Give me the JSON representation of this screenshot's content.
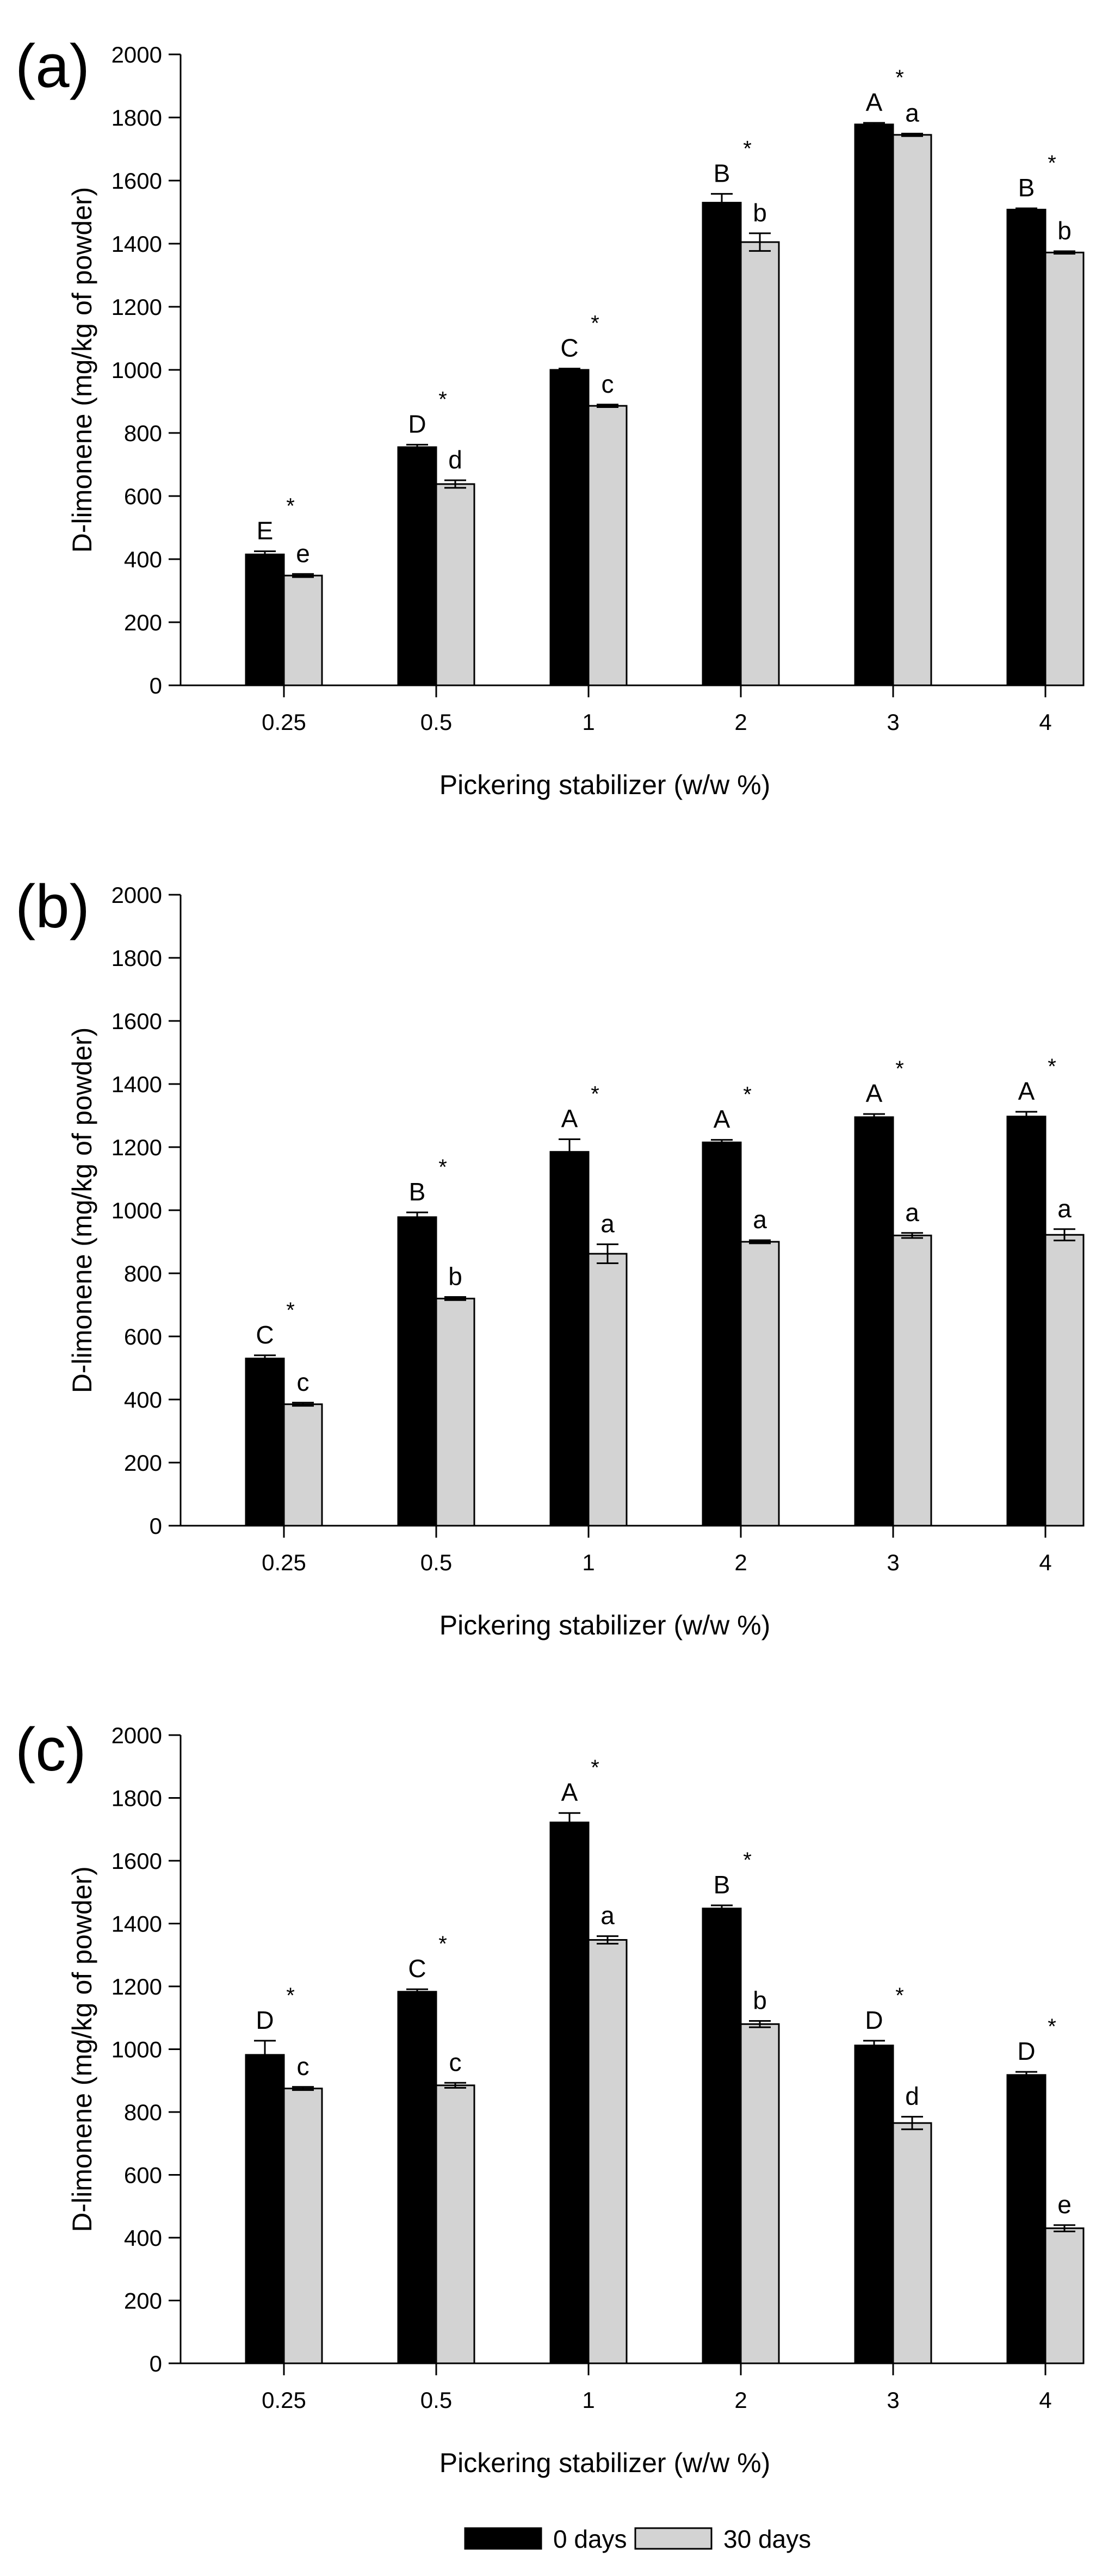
{
  "chart_data": [
    {
      "panel_label": "(a)",
      "type": "bar",
      "xlabel": "Pickering stabilizer (w/w %)",
      "ylabel": "D-limonene (mg/kg of powder)",
      "ylim": [
        0,
        2000
      ],
      "yticks": [
        "0",
        "200",
        "400",
        "600",
        "800",
        "1000",
        "1200",
        "1400",
        "1600",
        "1800",
        "2000"
      ],
      "categories": [
        "0.25",
        "0.5",
        "1",
        "2",
        "3",
        "4"
      ],
      "series": [
        {
          "name": "0 days",
          "color": "#000000",
          "values": [
            415,
            755,
            1000,
            1530,
            1778,
            1508
          ],
          "errors": [
            10,
            8,
            4,
            28,
            5,
            4
          ],
          "letters": [
            "E",
            "D",
            "C",
            "B",
            "A",
            "B"
          ]
        },
        {
          "name": "30 days",
          "color": "#d3d3d3",
          "values": [
            348,
            638,
            886,
            1405,
            1745,
            1372
          ],
          "errors": [
            5,
            12,
            4,
            28,
            4,
            4
          ],
          "letters": [
            "e",
            "d",
            "c",
            "b",
            "a",
            "b"
          ]
        }
      ],
      "significance": [
        "*",
        "*",
        "*",
        "*",
        "*",
        "*"
      ]
    },
    {
      "panel_label": "(b)",
      "type": "bar",
      "xlabel": "Pickering stabilizer (w/w %)",
      "ylabel": "D-limonene (mg/kg of powder)",
      "ylim": [
        0,
        2000
      ],
      "yticks": [
        "0",
        "200",
        "400",
        "600",
        "800",
        "1000",
        "1200",
        "1400",
        "1600",
        "1800",
        "2000"
      ],
      "categories": [
        "0.25",
        "0.5",
        "1",
        "2",
        "3",
        "4"
      ],
      "series": [
        {
          "name": "0 days",
          "color": "#000000",
          "values": [
            530,
            978,
            1185,
            1215,
            1295,
            1297
          ],
          "errors": [
            10,
            15,
            40,
            8,
            10,
            15
          ],
          "letters": [
            "C",
            "B",
            "A",
            "A",
            "A",
            "A"
          ]
        },
        {
          "name": "30 days",
          "color": "#d3d3d3",
          "values": [
            385,
            720,
            862,
            900,
            920,
            922
          ],
          "errors": [
            5,
            5,
            30,
            5,
            8,
            18
          ],
          "letters": [
            "c",
            "b",
            "a",
            "a",
            "a",
            "a"
          ]
        }
      ],
      "significance": [
        "*",
        "*",
        "*",
        "*",
        "*",
        "*"
      ]
    },
    {
      "panel_label": "(c)",
      "type": "bar",
      "xlabel": "Pickering stabilizer (w/w %)",
      "ylabel": "D-limonene (mg/kg of powder)",
      "ylim": [
        0,
        2000
      ],
      "yticks": [
        "0",
        "200",
        "400",
        "600",
        "800",
        "1000",
        "1200",
        "1400",
        "1600",
        "1800",
        "2000"
      ],
      "categories": [
        "0.25",
        "0.5",
        "1",
        "2",
        "3",
        "4"
      ],
      "series": [
        {
          "name": "0 days",
          "color": "#000000",
          "values": [
            982,
            1183,
            1722,
            1448,
            1012,
            918
          ],
          "errors": [
            45,
            8,
            30,
            10,
            15,
            10
          ],
          "letters": [
            "D",
            "C",
            "A",
            "B",
            "D",
            "D"
          ]
        },
        {
          "name": "30 days",
          "color": "#d3d3d3",
          "values": [
            875,
            885,
            1348,
            1080,
            765,
            430
          ],
          "errors": [
            5,
            8,
            12,
            10,
            20,
            10
          ],
          "letters": [
            "c",
            "c",
            "a",
            "b",
            "d",
            "e"
          ]
        }
      ],
      "significance": [
        "*",
        "*",
        "*",
        "*",
        "*",
        "*"
      ]
    }
  ],
  "legend": {
    "items": [
      {
        "label": "0 days",
        "color": "#000000"
      },
      {
        "label": "30 days",
        "color": "#d3d3d3"
      }
    ]
  }
}
